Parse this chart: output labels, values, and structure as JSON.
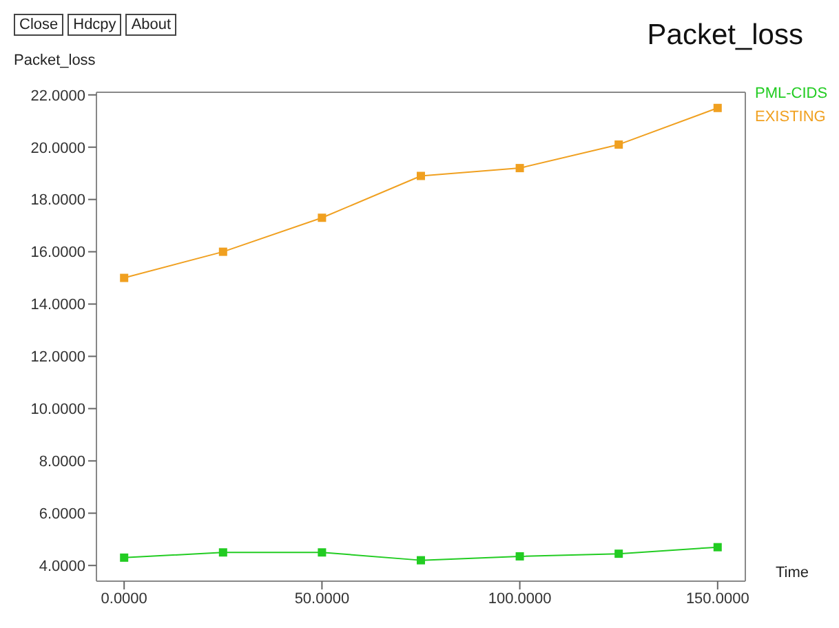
{
  "chart_data": {
    "type": "line",
    "title": "Packet_loss",
    "ylabel": "Packet_loss",
    "xlabel": "Time",
    "x": [
      0,
      25,
      50,
      75,
      100,
      125,
      150
    ],
    "series": [
      {
        "name": "PML-CIDS",
        "color": "#22cc22",
        "values": [
          4.3,
          4.5,
          4.5,
          4.2,
          4.35,
          4.45,
          4.7
        ]
      },
      {
        "name": "EXISTING",
        "color": "#f0a020",
        "values": [
          15.0,
          16.0,
          17.3,
          18.9,
          19.2,
          20.1,
          21.5
        ]
      }
    ],
    "xlim": [
      -7,
      157
    ],
    "ylim": [
      3.4,
      22.1
    ],
    "xticks": [
      {
        "value": 0,
        "label": "0.0000"
      },
      {
        "value": 50,
        "label": "50.0000"
      },
      {
        "value": 100,
        "label": "100.0000"
      },
      {
        "value": 150,
        "label": "150.0000"
      }
    ],
    "yticks": [
      {
        "value": 4,
        "label": "4.0000"
      },
      {
        "value": 6,
        "label": "6.0000"
      },
      {
        "value": 8,
        "label": "8.0000"
      },
      {
        "value": 10,
        "label": "10.0000"
      },
      {
        "value": 12,
        "label": "12.0000"
      },
      {
        "value": 14,
        "label": "14.0000"
      },
      {
        "value": 16,
        "label": "16.0000"
      },
      {
        "value": 18,
        "label": "18.0000"
      },
      {
        "value": 20,
        "label": "20.0000"
      },
      {
        "value": 22,
        "label": "22.0000"
      }
    ],
    "annotations": [
      "Close",
      "Hdcpy",
      "About"
    ],
    "grid": false,
    "legend": "right",
    "marker": "square",
    "line_style": "solid"
  }
}
